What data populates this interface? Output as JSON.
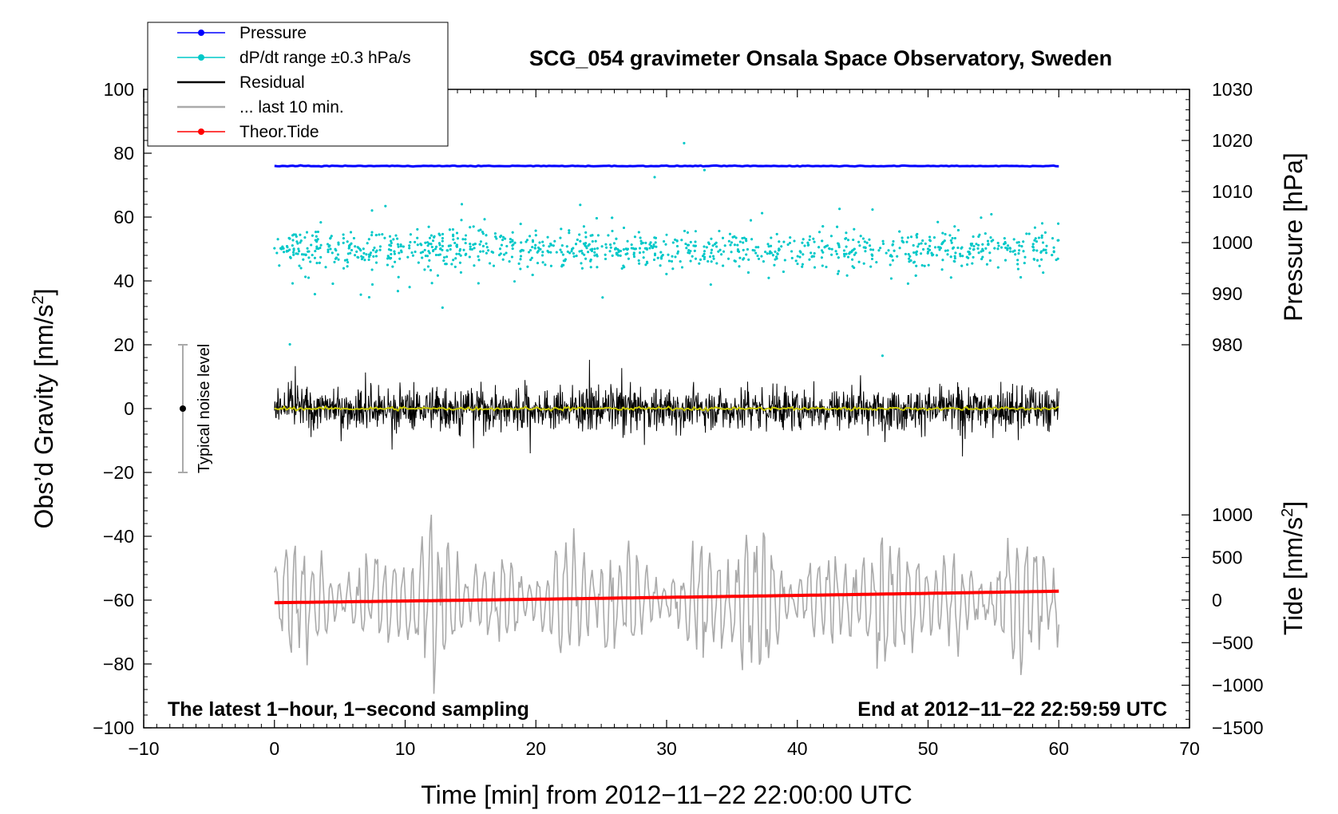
{
  "chart_data": {
    "type": "scatter",
    "title": "SCG_054 gravimeter Onsala Space Observatory, Sweden",
    "xlabel": "Time [min] from 2012−11−22 22:00:00 UTC",
    "ylabel_main": "Obs’d Gravity [nm/s",
    "ylabel_sup": "2",
    "ylabel_close": "]",
    "ylabel_pressure": "Pressure [hPa]",
    "ylabel_tide_main": "Tide [nm/s",
    "ylabel_tide_sup": "2",
    "ylabel_tide_close": "]",
    "xlim": [
      -10,
      70
    ],
    "ylim": [
      -100,
      100
    ],
    "x_ticks": [
      "−10",
      "0",
      "10",
      "20",
      "30",
      "40",
      "50",
      "60",
      "70"
    ],
    "y_ticks": [
      "−100",
      "−80",
      "−60",
      "−40",
      "−20",
      "0",
      "20",
      "40",
      "60",
      "80",
      "100"
    ],
    "pressure_axis": {
      "ticks": [
        "980",
        "990",
        "1000",
        "1010",
        "1020",
        "1030"
      ],
      "gravity_at_980": 20,
      "gravity_at_1030": 100
    },
    "tide_axis": {
      "ticks": [
        "−1500",
        "−1000",
        "−500",
        "0",
        "500",
        "1000"
      ],
      "gravity_at_minus1500": -100,
      "gravity_at_1000": -33.3
    },
    "legend": [
      {
        "label": "Pressure",
        "color": "#0000ff",
        "marker": true
      },
      {
        "label": "dP/dt range ±0.3 hPa/s",
        "color": "#00c8c8",
        "marker": true
      },
      {
        "label": "Residual",
        "color": "#000000",
        "marker": false
      },
      {
        "label": "... last 10 min.",
        "color": "#aaaaaa",
        "marker": false
      },
      {
        "label": "Theor.Tide",
        "color": "#ff0000",
        "marker": true
      }
    ],
    "series": [
      {
        "name": "Pressure",
        "color": "#0000ff",
        "x_range": [
          0,
          60
        ],
        "pressure_hPa": 1016,
        "gravity_level": 76
      },
      {
        "name": "dP/dt range ±0.3 hPa/s",
        "color": "#00c8c8",
        "x_range": [
          0,
          60
        ],
        "gravity_center": 50,
        "gravity_spread": 15
      },
      {
        "name": "Residual",
        "color": "#000000",
        "x_range": [
          0,
          60
        ],
        "gravity_center": 0,
        "gravity_amplitude": 20
      },
      {
        "name": "Residual smoothed",
        "color": "#c8c800",
        "x_range": [
          0,
          60
        ],
        "gravity_level": 0
      },
      {
        "name": "... last 10 min.",
        "color": "#aaaaaa",
        "x_range": [
          0,
          60
        ],
        "gravity_center": -60,
        "gravity_amplitude": 25
      },
      {
        "name": "Theor.Tide",
        "color": "#ff0000",
        "x": [
          0,
          60
        ],
        "gravity": [
          -60.8,
          -57.2
        ]
      }
    ],
    "noise_bar": {
      "label": "Typical noise level",
      "x": -7,
      "gravity_range": [
        -20,
        20
      ],
      "center": 0
    },
    "annotations": {
      "left": "The latest 1−hour, 1−second sampling",
      "right": "End at 2012−11−22 22:59:59 UTC"
    }
  }
}
